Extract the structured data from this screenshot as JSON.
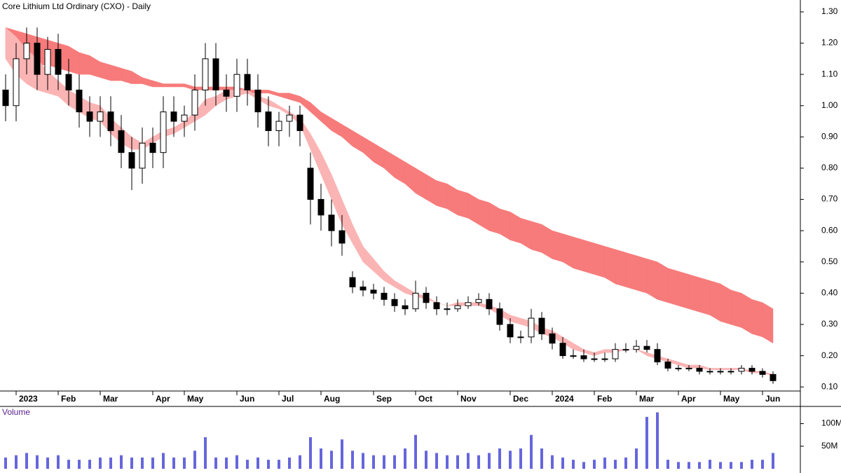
{
  "chart_data": {
    "type": "candlestick",
    "title": "Core Lithium Ltd Ordinary (CXO) - Daily",
    "categories": [
      null,
      "2023",
      null,
      null,
      null,
      "Feb",
      null,
      null,
      null,
      "Mar",
      null,
      null,
      null,
      null,
      "Apr",
      null,
      null,
      "May",
      null,
      null,
      null,
      null,
      "Jun",
      null,
      null,
      null,
      "Jul",
      null,
      null,
      null,
      "Aug",
      null,
      null,
      null,
      null,
      "Sep",
      null,
      null,
      null,
      "Oct",
      null,
      null,
      null,
      "Nov",
      null,
      null,
      null,
      null,
      "Dec",
      null,
      null,
      null,
      "2024",
      null,
      null,
      null,
      "Feb",
      null,
      null,
      null,
      "Mar",
      null,
      null,
      null,
      "Apr",
      null,
      null,
      null,
      "May",
      null,
      null,
      null,
      "Jun",
      null
    ],
    "open": [
      1.05,
      1.0,
      1.15,
      1.2,
      1.1,
      1.18,
      1.1,
      1.05,
      0.98,
      0.95,
      0.98,
      0.92,
      0.85,
      0.8,
      0.88,
      0.85,
      0.98,
      0.95,
      0.97,
      1.05,
      1.15,
      1.05,
      1.03,
      1.1,
      1.05,
      0.98,
      0.92,
      0.95,
      0.97,
      0.8,
      0.7,
      0.65,
      0.6,
      0.45,
      0.42,
      0.41,
      0.4,
      0.38,
      0.36,
      0.35,
      0.4,
      0.37,
      0.35,
      0.35,
      0.36,
      0.37,
      0.38,
      0.35,
      0.3,
      0.26,
      0.26,
      0.32,
      0.27,
      0.24,
      0.2,
      0.2,
      0.19,
      0.19,
      0.19,
      0.22,
      0.22,
      0.23,
      0.22,
      0.18,
      0.16,
      0.16,
      0.16,
      0.15,
      0.15,
      0.15,
      0.15,
      0.16,
      0.15,
      0.14
    ],
    "high": [
      1.1,
      1.2,
      1.25,
      1.25,
      1.22,
      1.23,
      1.15,
      1.1,
      1.03,
      1.03,
      1.03,
      0.97,
      0.9,
      0.93,
      0.93,
      1.03,
      1.03,
      1.0,
      1.1,
      1.2,
      1.2,
      1.1,
      1.15,
      1.15,
      1.1,
      1.03,
      0.98,
      1.0,
      1.0,
      0.85,
      0.75,
      0.7,
      0.65,
      0.47,
      0.44,
      0.43,
      0.42,
      0.4,
      0.38,
      0.44,
      0.42,
      0.39,
      0.37,
      0.38,
      0.39,
      0.4,
      0.4,
      0.37,
      0.32,
      0.28,
      0.35,
      0.34,
      0.29,
      0.26,
      0.22,
      0.22,
      0.21,
      0.21,
      0.24,
      0.24,
      0.25,
      0.25,
      0.24,
      0.19,
      0.17,
      0.17,
      0.17,
      0.16,
      0.16,
      0.16,
      0.17,
      0.17,
      0.16,
      0.15
    ],
    "low": [
      0.95,
      0.95,
      1.1,
      1.05,
      1.05,
      1.05,
      1.0,
      0.93,
      0.9,
      0.9,
      0.87,
      0.8,
      0.73,
      0.75,
      0.8,
      0.8,
      0.9,
      0.9,
      0.92,
      1.0,
      1.0,
      0.98,
      0.98,
      1.0,
      0.93,
      0.87,
      0.87,
      0.9,
      0.87,
      0.62,
      0.6,
      0.55,
      0.52,
      0.4,
      0.39,
      0.38,
      0.36,
      0.34,
      0.33,
      0.34,
      0.35,
      0.33,
      0.33,
      0.34,
      0.35,
      0.36,
      0.33,
      0.28,
      0.24,
      0.24,
      0.24,
      0.25,
      0.22,
      0.19,
      0.19,
      0.18,
      0.18,
      0.18,
      0.18,
      0.21,
      0.21,
      0.21,
      0.17,
      0.15,
      0.15,
      0.15,
      0.14,
      0.14,
      0.14,
      0.14,
      0.14,
      0.14,
      0.13,
      0.11
    ],
    "close": [
      1.0,
      1.15,
      1.2,
      1.1,
      1.18,
      1.1,
      1.05,
      0.98,
      0.95,
      0.98,
      0.92,
      0.85,
      0.8,
      0.88,
      0.85,
      0.98,
      0.95,
      0.97,
      1.05,
      1.15,
      1.05,
      1.03,
      1.1,
      1.05,
      0.98,
      0.92,
      0.95,
      0.97,
      0.92,
      0.7,
      0.65,
      0.6,
      0.56,
      0.42,
      0.41,
      0.4,
      0.38,
      0.36,
      0.35,
      0.4,
      0.37,
      0.35,
      0.35,
      0.36,
      0.37,
      0.38,
      0.35,
      0.3,
      0.26,
      0.26,
      0.32,
      0.27,
      0.24,
      0.2,
      0.2,
      0.19,
      0.19,
      0.19,
      0.22,
      0.22,
      0.23,
      0.22,
      0.18,
      0.16,
      0.16,
      0.16,
      0.15,
      0.15,
      0.15,
      0.15,
      0.16,
      0.15,
      0.14,
      0.12
    ],
    "bands": [
      {
        "color": "#f77b7b",
        "upper": [
          1.25,
          1.24,
          1.23,
          1.22,
          1.21,
          1.2,
          1.19,
          1.17,
          1.16,
          1.14,
          1.13,
          1.12,
          1.11,
          1.09,
          1.08,
          1.07,
          1.07,
          1.07,
          1.06,
          1.06,
          1.06,
          1.06,
          1.06,
          1.05,
          1.05,
          1.05,
          1.04,
          1.04,
          1.03,
          1.01,
          0.98,
          0.96,
          0.94,
          0.92,
          0.9,
          0.88,
          0.86,
          0.84,
          0.82,
          0.8,
          0.78,
          0.76,
          0.75,
          0.73,
          0.72,
          0.7,
          0.69,
          0.67,
          0.66,
          0.64,
          0.63,
          0.62,
          0.6,
          0.59,
          0.58,
          0.57,
          0.56,
          0.55,
          0.54,
          0.53,
          0.52,
          0.51,
          0.5,
          0.48,
          0.47,
          0.46,
          0.45,
          0.44,
          0.43,
          0.41,
          0.4,
          0.38,
          0.37,
          0.35
        ],
        "lower": [
          1.15,
          1.14,
          1.14,
          1.13,
          1.13,
          1.12,
          1.11,
          1.1,
          1.1,
          1.09,
          1.08,
          1.08,
          1.07,
          1.07,
          1.06,
          1.06,
          1.06,
          1.06,
          1.05,
          1.05,
          1.05,
          1.05,
          1.05,
          1.04,
          1.04,
          1.04,
          1.03,
          1.02,
          1.01,
          0.98,
          0.95,
          0.92,
          0.9,
          0.87,
          0.85,
          0.82,
          0.8,
          0.77,
          0.75,
          0.72,
          0.7,
          0.68,
          0.67,
          0.65,
          0.64,
          0.62,
          0.6,
          0.59,
          0.57,
          0.56,
          0.54,
          0.53,
          0.51,
          0.5,
          0.48,
          0.47,
          0.46,
          0.45,
          0.43,
          0.42,
          0.41,
          0.4,
          0.38,
          0.37,
          0.36,
          0.35,
          0.34,
          0.33,
          0.31,
          0.3,
          0.29,
          0.27,
          0.26,
          0.24
        ]
      },
      {
        "color": "#fbb4b4",
        "upper": [
          1.25,
          1.22,
          1.18,
          1.15,
          1.11,
          1.08,
          1.05,
          1.03,
          1.01,
          1.0,
          0.96,
          0.93,
          0.9,
          0.88,
          0.9,
          0.92,
          0.93,
          0.95,
          0.98,
          1.02,
          1.03,
          1.05,
          1.05,
          1.05,
          1.03,
          1.02,
          1.0,
          0.98,
          0.96,
          0.91,
          0.85,
          0.78,
          0.7,
          0.62,
          0.55,
          0.51,
          0.47,
          0.44,
          0.42,
          0.4,
          0.39,
          0.37,
          0.36,
          0.37,
          0.37,
          0.37,
          0.36,
          0.35,
          0.33,
          0.32,
          0.31,
          0.29,
          0.28,
          0.26,
          0.24,
          0.22,
          0.21,
          0.22,
          0.22,
          0.22,
          0.22,
          0.21,
          0.2,
          0.19,
          0.18,
          0.17,
          0.17,
          0.16,
          0.16,
          0.16,
          0.16,
          0.15,
          0.15,
          0.14
        ],
        "lower": [
          1.15,
          1.1,
          1.07,
          1.05,
          1.04,
          1.03,
          1.0,
          0.98,
          0.96,
          0.95,
          0.91,
          0.88,
          0.86,
          0.86,
          0.88,
          0.9,
          0.91,
          0.93,
          0.95,
          0.97,
          1.0,
          1.02,
          1.03,
          1.04,
          1.02,
          1.0,
          0.99,
          0.97,
          0.94,
          0.86,
          0.78,
          0.7,
          0.62,
          0.56,
          0.5,
          0.47,
          0.44,
          0.42,
          0.4,
          0.39,
          0.38,
          0.37,
          0.36,
          0.36,
          0.36,
          0.36,
          0.35,
          0.33,
          0.31,
          0.3,
          0.29,
          0.27,
          0.26,
          0.24,
          0.22,
          0.21,
          0.2,
          0.21,
          0.21,
          0.22,
          0.22,
          0.2,
          0.19,
          0.18,
          0.17,
          0.16,
          0.16,
          0.155,
          0.155,
          0.155,
          0.155,
          0.145,
          0.145,
          0.135
        ]
      }
    ],
    "ylim": [
      0.087,
      1.338
    ],
    "yticks": [
      {
        "value": 0.1,
        "label": "0.10"
      },
      {
        "value": 0.2,
        "label": "0.20"
      },
      {
        "value": 0.3,
        "label": "0.30"
      },
      {
        "value": 0.4,
        "label": "0.40"
      },
      {
        "value": 0.5,
        "label": "0.50"
      },
      {
        "value": 0.6,
        "label": "0.60"
      },
      {
        "value": 0.7,
        "label": "0.70"
      },
      {
        "value": 0.8,
        "label": "0.80"
      },
      {
        "value": 0.9,
        "label": "0.90"
      },
      {
        "value": 1.0,
        "label": "1.00"
      },
      {
        "value": 1.1,
        "label": "1.10"
      },
      {
        "value": 1.2,
        "label": "1.20"
      },
      {
        "value": 1.3,
        "label": "1.30"
      }
    ],
    "volume": {
      "title": "Volume",
      "color": "#6666dd",
      "values": [
        25,
        30,
        35,
        30,
        25,
        30,
        20,
        20,
        20,
        25,
        25,
        30,
        25,
        25,
        25,
        35,
        25,
        25,
        40,
        70,
        25,
        25,
        30,
        20,
        25,
        20,
        20,
        25,
        30,
        70,
        45,
        40,
        65,
        40,
        35,
        30,
        30,
        30,
        45,
        75,
        40,
        35,
        30,
        30,
        35,
        30,
        35,
        45,
        40,
        45,
        75,
        45,
        30,
        25,
        20,
        15,
        20,
        25,
        20,
        25,
        45,
        115,
        125,
        20,
        15,
        15,
        15,
        20,
        15,
        15,
        15,
        20,
        20,
        35
      ],
      "ylim": [
        0,
        135
      ],
      "yticks": [
        {
          "value": 50,
          "label": "50M"
        },
        {
          "value": 100,
          "label": "100M"
        }
      ]
    }
  }
}
